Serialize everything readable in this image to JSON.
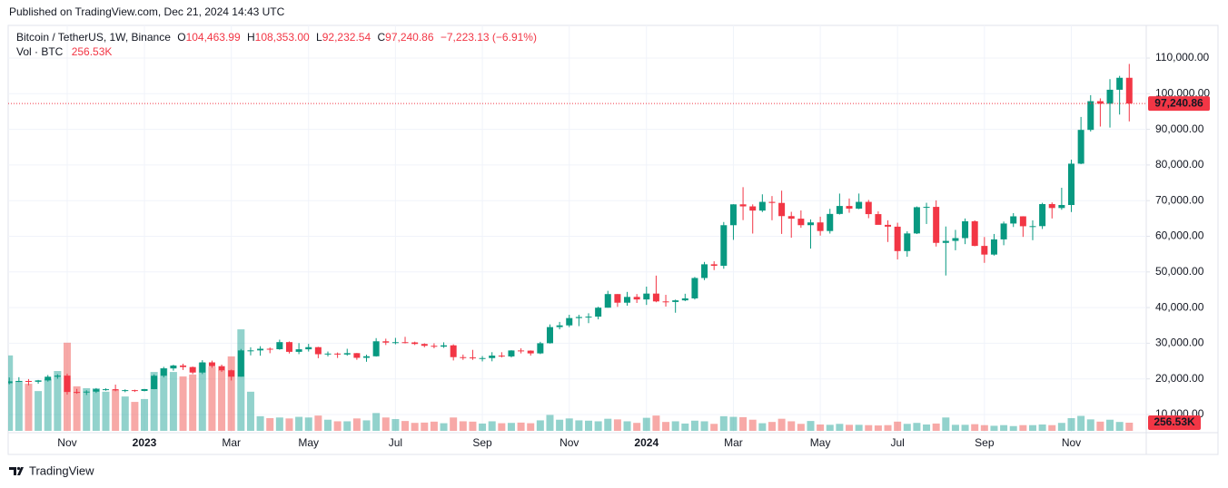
{
  "chart_data": {
    "type": "candlestick",
    "header": "Published on TradingView.com, Dec 21, 2024 14:43 UTC",
    "title": "Bitcoin / TetherUS, 1W, Binance",
    "ohlc_keys": {
      "open": "O",
      "high": "H",
      "low": "L",
      "close": "C"
    },
    "ohlc_labels": {
      "open": "104,463.99",
      "high": "108,353.00",
      "low": "92,232.54",
      "close": "97,240.86"
    },
    "change_label": "−7,223.13 (−6.91%)",
    "footer": "TradingView",
    "up_color": "#089981",
    "down_color": "#f23645",
    "volume_up_color": "rgba(38,166,154,0.5)",
    "volume_down_color": "rgba(239,83,80,0.5)",
    "grid": true,
    "categories": [
      null,
      null,
      null,
      null,
      null,
      null,
      "Nov",
      null,
      null,
      null,
      null,
      null,
      null,
      null,
      "2023",
      null,
      null,
      null,
      null,
      null,
      null,
      null,
      null,
      "Mar",
      null,
      null,
      null,
      null,
      null,
      null,
      null,
      "May",
      null,
      null,
      null,
      null,
      null,
      null,
      null,
      null,
      "Jul",
      null,
      null,
      null,
      null,
      null,
      null,
      null,
      null,
      "Sep",
      null,
      null,
      null,
      null,
      null,
      null,
      null,
      null,
      "Nov",
      null,
      null,
      null,
      null,
      null,
      null,
      null,
      "2024",
      null,
      null,
      null,
      null,
      null,
      null,
      null,
      null,
      "Mar",
      null,
      null,
      null,
      null,
      null,
      null,
      null,
      null,
      "May",
      null,
      null,
      null,
      null,
      null,
      null,
      null,
      "Jul",
      null,
      null,
      null,
      null,
      null,
      null,
      null,
      null,
      "Sep",
      null,
      null,
      null,
      null,
      null,
      null,
      null,
      null,
      "Nov",
      null,
      null,
      null,
      null,
      null,
      null
    ],
    "open": [
      18800,
      19310,
      19415,
      19190,
      19570,
      20600,
      20910,
      16330,
      16280,
      16430,
      17090,
      17100,
      16780,
      16840,
      16620,
      17130,
      20880,
      22930,
      23750,
      23320,
      21780,
      24630,
      23560,
      22400,
      20620,
      27985,
      27990,
      28450,
      28320,
      30310,
      27590,
      28300,
      28900,
      26920,
      27100,
      26840,
      27220,
      25910,
      26340,
      30540,
      30170,
      30290,
      30230,
      29790,
      29280,
      29040,
      29410,
      26100,
      26010,
      25830,
      25840,
      26530,
      26300,
      27970,
      27920,
      27150,
      30000,
      34530,
      35010,
      37060,
      37360,
      37460,
      39970,
      43790,
      41370,
      42990,
      42280,
      43930,
      41730,
      41570,
      42030,
      42580,
      48300,
      52140,
      51730,
      63110,
      68960,
      68390,
      67210,
      69650,
      69360,
      65660,
      64940,
      63120,
      63890,
      61480,
      66270,
      68500,
      67760,
      69650,
      66220,
      63210,
      62700,
      55850,
      60800,
      68160,
      68250,
      58150,
      58710,
      59490,
      64220,
      57300,
      54870,
      59130,
      63580,
      65600,
      62820,
      62850,
      69030,
      67930,
      68780,
      80370,
      89850,
      97900,
      97190,
      101110,
      104463.99
    ],
    "high": [
      20385,
      20475,
      19950,
      19700,
      21085,
      21300,
      21470,
      17190,
      16810,
      17425,
      17350,
      18390,
      17060,
      16970,
      17180,
      21260,
      23380,
      23960,
      24255,
      23460,
      25250,
      25120,
      24000,
      22600,
      28390,
      28870,
      29170,
      28800,
      31000,
      30490,
      30040,
      29820,
      29000,
      27670,
      27400,
      28450,
      27260,
      26800,
      31430,
      31280,
      31500,
      31800,
      30440,
      29990,
      29990,
      30250,
      29690,
      26830,
      28140,
      26400,
      27490,
      27480,
      28040,
      28580,
      28000,
      30400,
      35280,
      35980,
      37980,
      37980,
      38400,
      40250,
      44700,
      43800,
      44400,
      43800,
      45880,
      48970,
      43580,
      42250,
      43880,
      48590,
      52800,
      52990,
      64000,
      69000,
      73780,
      68950,
      71770,
      71290,
      72800,
      66870,
      67250,
      64740,
      65500,
      67700,
      71980,
      70600,
      71990,
      70200,
      66990,
      64490,
      63800,
      61400,
      68370,
      69400,
      70080,
      62750,
      61800,
      65000,
      64480,
      59800,
      60650,
      64130,
      66500,
      65630,
      64480,
      69400,
      69500,
      73620,
      81500,
      93480,
      99590,
      98690,
      104090,
      105000,
      108353
    ],
    "low": [
      18470,
      19090,
      18190,
      18650,
      19240,
      20040,
      15590,
      15815,
      15475,
      16050,
      16680,
      16530,
      16270,
      16330,
      16500,
      17090,
      20400,
      22300,
      22500,
      21350,
      21350,
      23100,
      21970,
      19550,
      20600,
      26600,
      26500,
      27200,
      28170,
      27125,
      26940,
      27670,
      25810,
      26300,
      25870,
      26500,
      25350,
      24800,
      26250,
      29500,
      29700,
      29950,
      29500,
      28860,
      28580,
      28700,
      25170,
      25330,
      25330,
      24900,
      24930,
      26000,
      26000,
      27150,
      26530,
      26950,
      29900,
      33900,
      34520,
      34800,
      35630,
      36700,
      39970,
      40200,
      40530,
      41300,
      40750,
      41500,
      40280,
      38560,
      41800,
      42260,
      47700,
      50520,
      50900,
      59000,
      64540,
      60770,
      66800,
      64500,
      60660,
      59600,
      62380,
      56550,
      60190,
      60760,
      66100,
      66600,
      67610,
      65080,
      63380,
      58400,
      53500,
      54260,
      60630,
      63450,
      57120,
      49000,
      56080,
      57800,
      57200,
      52550,
      54580,
      57490,
      62600,
      59830,
      58900,
      62050,
      65000,
      67440,
      66800,
      80220,
      89380,
      90790,
      90500,
      94150,
      92232.54
    ],
    "close": [
      19310,
      19415,
      19190,
      19570,
      20600,
      20910,
      16330,
      16280,
      16430,
      17090,
      17100,
      16780,
      16840,
      16620,
      17130,
      20880,
      22930,
      23750,
      23320,
      21780,
      24630,
      23560,
      22400,
      20620,
      27985,
      27990,
      28450,
      28320,
      30310,
      27590,
      28300,
      28900,
      26920,
      27100,
      26840,
      27220,
      25910,
      26340,
      30540,
      30170,
      30290,
      30230,
      29790,
      29280,
      29040,
      29410,
      26100,
      26010,
      25830,
      25840,
      26530,
      26300,
      27970,
      27920,
      27150,
      30000,
      34530,
      35010,
      37060,
      37360,
      37460,
      39970,
      43790,
      41370,
      42990,
      42280,
      43930,
      41730,
      41570,
      42030,
      42580,
      48300,
      52140,
      51730,
      63110,
      68960,
      68390,
      67210,
      69650,
      69360,
      65660,
      64940,
      63120,
      63890,
      61480,
      66270,
      68500,
      67760,
      69650,
      66220,
      63210,
      62700,
      55850,
      60800,
      68160,
      68250,
      58150,
      58710,
      59490,
      64220,
      57300,
      54870,
      59130,
      63580,
      65600,
      62820,
      62850,
      69030,
      67930,
      68780,
      80370,
      89850,
      97900,
      97190,
      101110,
      104463.99,
      97240.86
    ],
    "volume": {
      "name": "Vol · BTC",
      "values": [
        2370000,
        1570000,
        1480000,
        1250000,
        1620000,
        1880000,
        2770000,
        1400000,
        1340000,
        1340000,
        1230000,
        1280000,
        1080000,
        910000,
        1000000,
        1850000,
        1970000,
        1850000,
        1710000,
        1770000,
        2140000,
        2020000,
        1910000,
        2340000,
        3190000,
        1230000,
        460000,
        400000,
        420000,
        390000,
        440000,
        420000,
        480000,
        350000,
        300000,
        300000,
        390000,
        330000,
        560000,
        420000,
        370000,
        310000,
        250000,
        260000,
        290000,
        240000,
        420000,
        300000,
        290000,
        230000,
        300000,
        240000,
        250000,
        260000,
        240000,
        330000,
        500000,
        350000,
        390000,
        330000,
        320000,
        300000,
        380000,
        360000,
        300000,
        250000,
        410000,
        480000,
        280000,
        300000,
        230000,
        320000,
        300000,
        220000,
        460000,
        440000,
        430000,
        350000,
        240000,
        280000,
        380000,
        300000,
        220000,
        310000,
        200000,
        190000,
        220000,
        190000,
        190000,
        180000,
        170000,
        180000,
        290000,
        220000,
        250000,
        200000,
        230000,
        420000,
        190000,
        190000,
        210000,
        180000,
        160000,
        180000,
        150000,
        180000,
        180000,
        200000,
        180000,
        250000,
        400000,
        470000,
        360000,
        290000,
        350000,
        280000,
        256530
      ],
      "value_labels": [
        null,
        null,
        null,
        null,
        null,
        null,
        null,
        null,
        null,
        null,
        null,
        null,
        null,
        null,
        null,
        null,
        null,
        null,
        null,
        null,
        null,
        null,
        null,
        null,
        null,
        null,
        null,
        null,
        null,
        null,
        null,
        null,
        null,
        null,
        null,
        null,
        null,
        null,
        null,
        null,
        null,
        null,
        null,
        null,
        null,
        null,
        null,
        null,
        null,
        null,
        null,
        null,
        null,
        null,
        null,
        null,
        null,
        null,
        null,
        null,
        null,
        null,
        null,
        null,
        null,
        null,
        null,
        null,
        null,
        null,
        null,
        null,
        null,
        null,
        null,
        null,
        null,
        null,
        null,
        null,
        null,
        null,
        null,
        null,
        null,
        null,
        null,
        null,
        null,
        null,
        null,
        null,
        null,
        null,
        null,
        null,
        null,
        null,
        null,
        null,
        null,
        null,
        null,
        null,
        null,
        null,
        null,
        null,
        null,
        null,
        null,
        null,
        null,
        null,
        null,
        null,
        "256.53K"
      ]
    },
    "ylim": [
      5420,
      119160
    ],
    "yticks": [
      {
        "value": 10000,
        "label": "10,000.00"
      },
      {
        "value": 20000,
        "label": "20,000.00"
      },
      {
        "value": 30000,
        "label": "30,000.00"
      },
      {
        "value": 40000,
        "label": "40,000.00"
      },
      {
        "value": 50000,
        "label": "50,000.00"
      },
      {
        "value": 60000,
        "label": "60,000.00"
      },
      {
        "value": 70000,
        "label": "70,000.00"
      },
      {
        "value": 80000,
        "label": "80,000.00"
      },
      {
        "value": 90000,
        "label": "90,000.00"
      },
      {
        "value": 100000,
        "label": "100,000.00"
      },
      {
        "value": 110000,
        "label": "110,000.00"
      }
    ],
    "y2lim": [
      0,
      12740000
    ]
  }
}
